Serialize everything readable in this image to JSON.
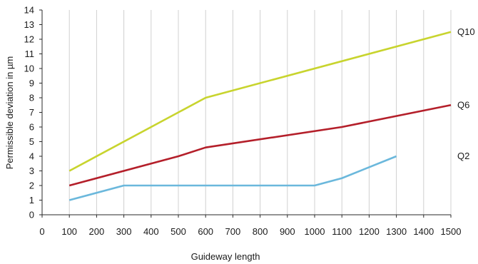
{
  "chart_data": {
    "type": "line",
    "title": "",
    "xlabel": "Guideway length",
    "ylabel": "Permissible deviation in µm",
    "xlim": [
      0,
      1500
    ],
    "ylim": [
      0,
      14
    ],
    "x_ticks": [
      0,
      100,
      200,
      300,
      400,
      500,
      600,
      700,
      800,
      900,
      1000,
      1100,
      1200,
      1300,
      1400,
      1500
    ],
    "y_ticks": [
      0,
      1,
      2,
      3,
      4,
      5,
      6,
      7,
      8,
      9,
      10,
      11,
      12,
      13,
      14
    ],
    "grid": "vertical",
    "legend": "labels at line ends (right)",
    "series": [
      {
        "name": "Q10",
        "color": "#c8d42e",
        "x": [
          100,
          600,
          1500
        ],
        "y": [
          3,
          8,
          12.5
        ]
      },
      {
        "name": "Q6",
        "color": "#b41f2a",
        "x": [
          100,
          500,
          600,
          1100,
          1500
        ],
        "y": [
          2,
          4,
          4.6,
          6,
          7.5
        ]
      },
      {
        "name": "Q2",
        "color": "#6bb8dc",
        "x": [
          100,
          300,
          1000,
          1100,
          1300
        ],
        "y": [
          1,
          2,
          2,
          2.5,
          4
        ]
      }
    ]
  }
}
